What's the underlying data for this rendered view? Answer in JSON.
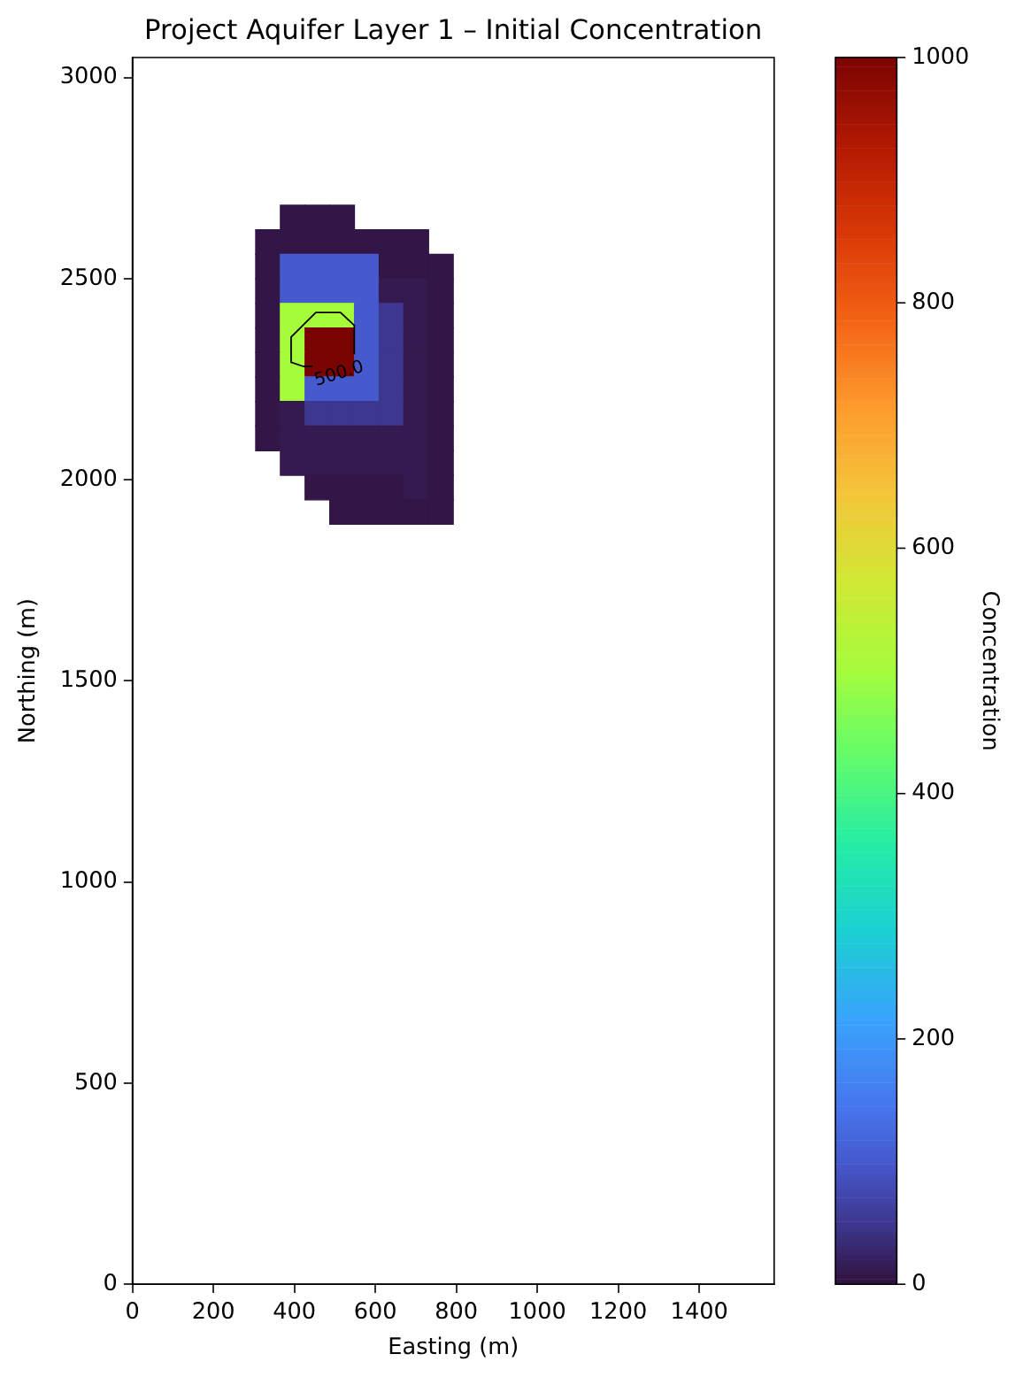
{
  "chart_data": {
    "type": "scatter",
    "title": "Project Aquifer Layer 1 – Initial Concentration",
    "xlabel": "Easting (m)",
    "ylabel": "Northing (m)",
    "clabel": "Concentration",
    "xlim": [
      0,
      1585
    ],
    "ylim": [
      0,
      3050
    ],
    "xticks": [
      0,
      200,
      400,
      600,
      800,
      1000,
      1200,
      1400
    ],
    "yticks": [
      0,
      500,
      1000,
      1500,
      2000,
      2500,
      3000
    ],
    "clim": [
      0,
      1000
    ],
    "cticks": [
      0,
      200,
      400,
      600,
      800,
      1000
    ],
    "marker": "square",
    "series": [
      {
        "type": "scatter",
        "x": [
          396,
          457,
          518,
          335,
          396,
          457,
          518,
          579,
          640,
          701,
          335,
          396,
          457,
          518,
          579,
          640,
          701,
          762,
          335,
          396,
          457,
          518,
          579,
          640,
          701,
          762,
          335,
          396,
          457,
          518,
          579,
          640,
          701,
          762,
          335,
          396,
          457,
          518,
          579,
          640,
          701,
          762,
          335,
          396,
          457,
          518,
          579,
          640,
          701,
          762,
          335,
          396,
          457,
          518,
          579,
          640,
          701,
          762,
          335,
          396,
          457,
          518,
          579,
          640,
          701,
          762,
          335,
          396,
          457,
          518,
          579,
          640,
          701,
          762,
          396,
          457,
          518,
          579,
          640,
          701,
          762,
          457,
          518,
          579,
          640,
          701,
          762,
          518,
          579,
          640,
          701,
          762
        ],
        "values": [
          2652,
          2652,
          2652,
          2591,
          2591,
          2591,
          2591,
          2591,
          2591,
          2591,
          2530,
          2530,
          2530,
          2530,
          2530,
          2530,
          2530,
          2530,
          2469,
          2469,
          2469,
          2469,
          2469,
          2469,
          2469,
          2469,
          2408,
          2408,
          2408,
          2408,
          2408,
          2408,
          2408,
          2408,
          2347,
          2347,
          2347,
          2347,
          2347,
          2347,
          2347,
          2347,
          2286,
          2286,
          2286,
          2286,
          2286,
          2286,
          2286,
          2286,
          2225,
          2225,
          2225,
          2225,
          2225,
          2225,
          2225,
          2225,
          2164,
          2164,
          2164,
          2164,
          2164,
          2164,
          2164,
          2164,
          2103,
          2103,
          2103,
          2103,
          2103,
          2103,
          2103,
          2103,
          2042,
          2042,
          2042,
          2042,
          2042,
          2042,
          2042,
          1981,
          1981,
          1981,
          1981,
          1981,
          1981,
          1920,
          1920,
          1920,
          1920,
          1920
        ],
        "cvalues": [
          5,
          5,
          5,
          5,
          5,
          5,
          5,
          5,
          5,
          5,
          5,
          100,
          100,
          100,
          100,
          5,
          5,
          5,
          5,
          100,
          100,
          100,
          100,
          10,
          10,
          5,
          5,
          500,
          500,
          500,
          100,
          50,
          10,
          5,
          5,
          500,
          1000,
          1000,
          100,
          50,
          10,
          5,
          5,
          500,
          1000,
          1000,
          100,
          50,
          10,
          5,
          5,
          500,
          100,
          100,
          100,
          50,
          10,
          5,
          5,
          10,
          50,
          50,
          50,
          50,
          10,
          5,
          5,
          10,
          10,
          10,
          10,
          10,
          10,
          5,
          10,
          10,
          10,
          10,
          10,
          10,
          5,
          5,
          5,
          5,
          5,
          10,
          5,
          5,
          5,
          5,
          5,
          5
        ],
        "colors": [
          "#321645",
          "#321645",
          "#321645",
          "#321645",
          "#321645",
          "#321645",
          "#321645",
          "#321645",
          "#321645",
          "#321645",
          "#321645",
          "#455acd",
          "#455acd",
          "#455acd",
          "#455acd",
          "#321645",
          "#321645",
          "#321645",
          "#321645",
          "#455acd",
          "#455acd",
          "#455acd",
          "#455acd",
          "#341a4e",
          "#341a4e",
          "#321645",
          "#321645",
          "#a4fc3b",
          "#a4fc3b",
          "#a4fc3b",
          "#455acd",
          "#3e378f",
          "#341a4e",
          "#321645",
          "#321645",
          "#a4fc3b",
          "#7a0402",
          "#7a0402",
          "#455acd",
          "#3e378f",
          "#341a4e",
          "#321645",
          "#321645",
          "#a4fc3b",
          "#7a0402",
          "#7a0402",
          "#455acd",
          "#3e378f",
          "#341a4e",
          "#321645",
          "#321645",
          "#a4fc3b",
          "#455acd",
          "#455acd",
          "#455acd",
          "#3e378f",
          "#341a4e",
          "#321645",
          "#321645",
          "#341a4e",
          "#3e378f",
          "#3e378f",
          "#3e378f",
          "#3e378f",
          "#341a4e",
          "#321645",
          "#321645",
          "#341a4e",
          "#341a4e",
          "#341a4e",
          "#341a4e",
          "#341a4e",
          "#341a4e",
          "#321645",
          "#341a4e",
          "#341a4e",
          "#341a4e",
          "#341a4e",
          "#341a4e",
          "#341a4e",
          "#321645",
          "#321645",
          "#321645",
          "#321645",
          "#321645",
          "#341a4e",
          "#321645",
          "#321645",
          "#321645",
          "#321645",
          "#321645",
          "#321645"
        ]
      },
      {
        "type": "line",
        "color": "#000000",
        "marker": "none",
        "x": [
          443,
          422,
          392,
          392,
          453,
          514,
          548,
          548
        ],
        "values": [
          2282,
          2282,
          2292,
          2355,
          2416,
          2416,
          2384,
          2314
        ]
      }
    ],
    "annotations": [
      {
        "text": "500.0",
        "x": 511,
        "y": 2263
      }
    ]
  }
}
